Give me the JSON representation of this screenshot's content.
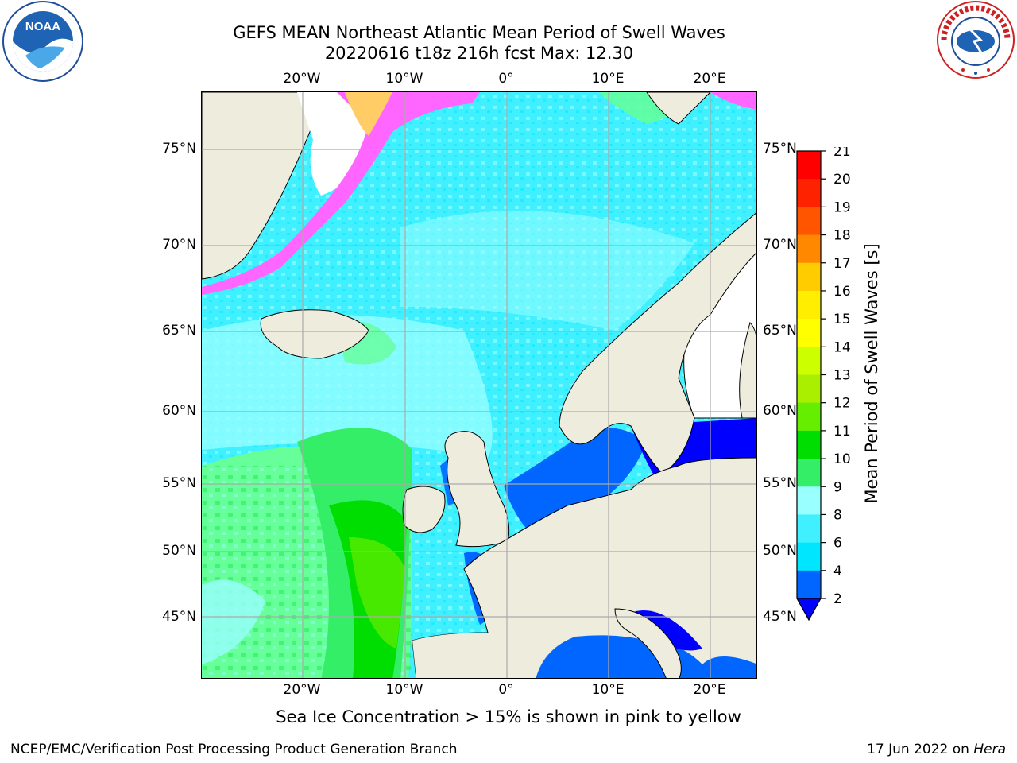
{
  "title": {
    "line1": "GEFS MEAN Northeast Atlantic Mean Period of Swell Waves",
    "line2": "20220616 t18z 216h fcst   Max: 12.30"
  },
  "logos": {
    "left": "noaa-logo",
    "right": "national-weather-service-logo"
  },
  "map": {
    "lon_ticks": [
      "20°W",
      "10°W",
      "0°",
      "10°E",
      "20°E"
    ],
    "lat_ticks": [
      "75°N",
      "70°N",
      "65°N",
      "60°N",
      "55°N",
      "50°N",
      "45°N"
    ],
    "land_color": "#eeecdc",
    "ice_colors": [
      "#ff66ff",
      "#ffcc66"
    ]
  },
  "colorbar": {
    "label": "Mean Period of Swell Waves [s]",
    "ticks": [
      "2",
      "4",
      "6",
      "8",
      "9",
      "10",
      "11",
      "12",
      "13",
      "14",
      "15",
      "16",
      "17",
      "18",
      "19",
      "20",
      "21"
    ],
    "colors": [
      "#0066ff",
      "#00e6ff",
      "#40f0ff",
      "#99ffff",
      "#66ff99",
      "#33ee66",
      "#00dd00",
      "#66ee00",
      "#aaee00",
      "#ccff00",
      "#ffff00",
      "#ffee00",
      "#ffcc00",
      "#ffaa00",
      "#ff8800",
      "#ff5500",
      "#ff2200",
      "#ff0000"
    ],
    "extend_color": "#0000ff"
  },
  "footer": {
    "note": "Sea Ice Concentration > 15% is shown in pink to yellow",
    "credit_left": "NCEP/EMC/Verification Post Processing Product Generation Branch",
    "date": "17 Jun 2022",
    "on": "on",
    "machine": "Hera"
  }
}
